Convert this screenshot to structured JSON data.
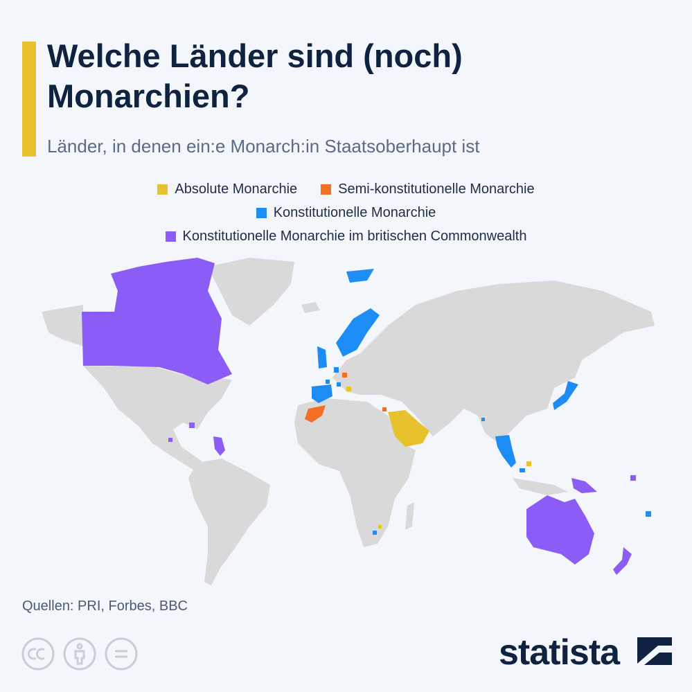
{
  "header": {
    "title": "Welche Länder sind (noch) Monarchien?",
    "subtitle": "Länder, in denen ein:e Monarch:in Staatsoberhaupt ist"
  },
  "legend": [
    {
      "label": "Absolute Monarchie",
      "color": "#e8c22e"
    },
    {
      "label": "Semi-konstitutionelle Monarchie",
      "color": "#f36f26"
    },
    {
      "label": "Konstitutionelle Monarchie",
      "color": "#1e8cf5"
    },
    {
      "label": "Konstitutionelle Monarchie im britischen Commonwealth",
      "color": "#8b5cf6"
    }
  ],
  "footer": {
    "source": "Quellen: PRI, Forbes, BBC",
    "brand": "statista"
  }
}
